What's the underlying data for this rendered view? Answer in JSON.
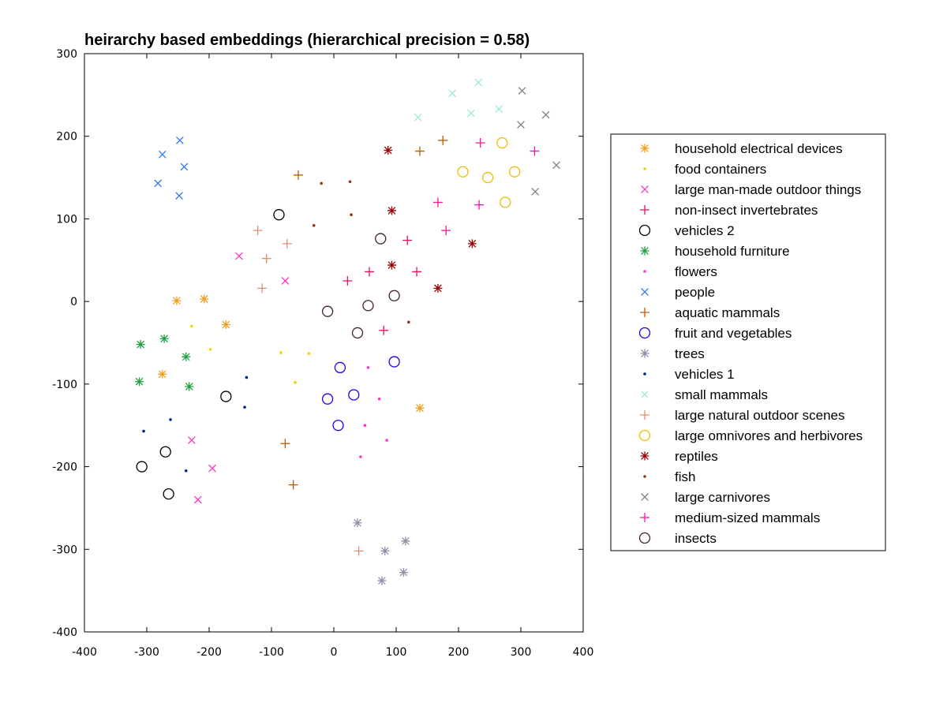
{
  "chart_data": {
    "type": "scatter",
    "title": "heirarchy based embeddings (hierarchical precision = 0.58)",
    "xlabel": "",
    "ylabel": "",
    "xlim": [
      -400,
      400
    ],
    "ylim": [
      -400,
      300
    ],
    "xticks": [
      -400,
      -300,
      -200,
      -100,
      0,
      100,
      200,
      300,
      400
    ],
    "yticks": [
      300,
      200,
      100,
      0,
      -100,
      -200,
      -300,
      -400
    ],
    "grid": false,
    "legend_position": "right",
    "series": [
      {
        "name": "household electrical devices",
        "marker": "asterisk",
        "color": "#f0a020",
        "points": [
          [
            -252,
            1
          ],
          [
            -208,
            3
          ],
          [
            -173,
            -28
          ],
          [
            -275,
            -88
          ],
          [
            138,
            -129
          ]
        ]
      },
      {
        "name": "food containers",
        "marker": "dot",
        "color": "#f5d000",
        "points": [
          [
            -228,
            -30
          ],
          [
            -198,
            -58
          ],
          [
            -85,
            -62
          ],
          [
            -40,
            -63
          ],
          [
            -62,
            -98
          ]
        ]
      },
      {
        "name": "large man-made outdoor things",
        "marker": "x",
        "color": "#ff33cc",
        "points": [
          [
            -152,
            55
          ],
          [
            -78,
            25
          ],
          [
            -228,
            -168
          ],
          [
            -195,
            -202
          ],
          [
            -218,
            -240
          ]
        ]
      },
      {
        "name": "non-insect invertebrates",
        "marker": "plus",
        "color": "#ee1155",
        "points": [
          [
            22,
            25
          ],
          [
            57,
            36
          ],
          [
            118,
            74
          ],
          [
            133,
            36
          ],
          [
            80,
            -35
          ]
        ]
      },
      {
        "name": "vehicles 2",
        "marker": "circle",
        "color": "#000000",
        "points": [
          [
            -88,
            105
          ],
          [
            -173,
            -115
          ],
          [
            -270,
            -182
          ],
          [
            -308,
            -200
          ],
          [
            -265,
            -233
          ]
        ]
      },
      {
        "name": "household furniture",
        "marker": "asterisk",
        "color": "#22a040",
        "points": [
          [
            -310,
            -52
          ],
          [
            -272,
            -45
          ],
          [
            -237,
            -67
          ],
          [
            -312,
            -97
          ],
          [
            -232,
            -103
          ]
        ]
      },
      {
        "name": "flowers",
        "marker": "dot",
        "color": "#ff33cc",
        "points": [
          [
            55,
            -80
          ],
          [
            73,
            -118
          ],
          [
            50,
            -150
          ],
          [
            85,
            -168
          ],
          [
            43,
            -188
          ]
        ]
      },
      {
        "name": "people",
        "marker": "x",
        "color": "#3377ee",
        "points": [
          [
            -247,
            195
          ],
          [
            -275,
            178
          ],
          [
            -240,
            163
          ],
          [
            -282,
            143
          ],
          [
            -248,
            128
          ]
        ]
      },
      {
        "name": "aquatic mammals",
        "marker": "plus",
        "color": "#c05a00",
        "points": [
          [
            -57,
            153
          ],
          [
            138,
            182
          ],
          [
            175,
            195
          ],
          [
            -78,
            -172
          ],
          [
            -65,
            -222
          ]
        ]
      },
      {
        "name": "fruit and vegetables",
        "marker": "circle",
        "color": "#2200ee",
        "points": [
          [
            10,
            -80
          ],
          [
            97,
            -73
          ],
          [
            -10,
            -118
          ],
          [
            32,
            -113
          ],
          [
            7,
            -150
          ]
        ]
      },
      {
        "name": "trees",
        "marker": "asterisk",
        "color": "#9090aa",
        "points": [
          [
            38,
            -268
          ],
          [
            82,
            -302
          ],
          [
            115,
            -290
          ],
          [
            77,
            -338
          ],
          [
            112,
            -328
          ]
        ]
      },
      {
        "name": "vehicles 1",
        "marker": "dot",
        "color": "#002288",
        "points": [
          [
            -140,
            -92
          ],
          [
            -143,
            -128
          ],
          [
            -262,
            -143
          ],
          [
            -305,
            -157
          ],
          [
            -237,
            -205
          ]
        ]
      },
      {
        "name": "small mammals",
        "marker": "x",
        "color": "#99eecc",
        "points": [
          [
            232,
            265
          ],
          [
            190,
            252
          ],
          [
            265,
            233
          ],
          [
            220,
            228
          ],
          [
            135,
            223
          ]
        ]
      },
      {
        "name": "large natural outdoor scenes",
        "marker": "plus",
        "color": "#e09070",
        "points": [
          [
            -122,
            86
          ],
          [
            -108,
            52
          ],
          [
            -75,
            70
          ],
          [
            -115,
            16
          ],
          [
            40,
            -302
          ]
        ]
      },
      {
        "name": "large omnivores and herbivores",
        "marker": "circle",
        "color": "#eebb00",
        "points": [
          [
            270,
            192
          ],
          [
            207,
            157
          ],
          [
            247,
            150
          ],
          [
            290,
            157
          ],
          [
            275,
            120
          ]
        ]
      },
      {
        "name": "reptiles",
        "marker": "asterisk",
        "color": "#990000",
        "points": [
          [
            87,
            183
          ],
          [
            93,
            110
          ],
          [
            93,
            44
          ],
          [
            167,
            16
          ],
          [
            222,
            70
          ]
        ]
      },
      {
        "name": "fish",
        "marker": "dot",
        "color": "#993311",
        "points": [
          [
            -20,
            143
          ],
          [
            26,
            145
          ],
          [
            -32,
            92
          ],
          [
            28,
            105
          ],
          [
            120,
            -25
          ]
        ]
      },
      {
        "name": "large carnivores",
        "marker": "x",
        "color": "#808080",
        "points": [
          [
            302,
            255
          ],
          [
            340,
            226
          ],
          [
            300,
            214
          ],
          [
            357,
            165
          ],
          [
            323,
            133
          ]
        ]
      },
      {
        "name": "medium-sized mammals",
        "marker": "plus",
        "color": "#ff1199",
        "points": [
          [
            235,
            192
          ],
          [
            322,
            182
          ],
          [
            233,
            117
          ],
          [
            167,
            120
          ],
          [
            180,
            86
          ]
        ]
      },
      {
        "name": "insects",
        "marker": "circle",
        "color": "#442222",
        "points": [
          [
            75,
            76
          ],
          [
            -10,
            -12
          ],
          [
            55,
            -5
          ],
          [
            97,
            7
          ],
          [
            38,
            -38
          ]
        ]
      }
    ]
  }
}
